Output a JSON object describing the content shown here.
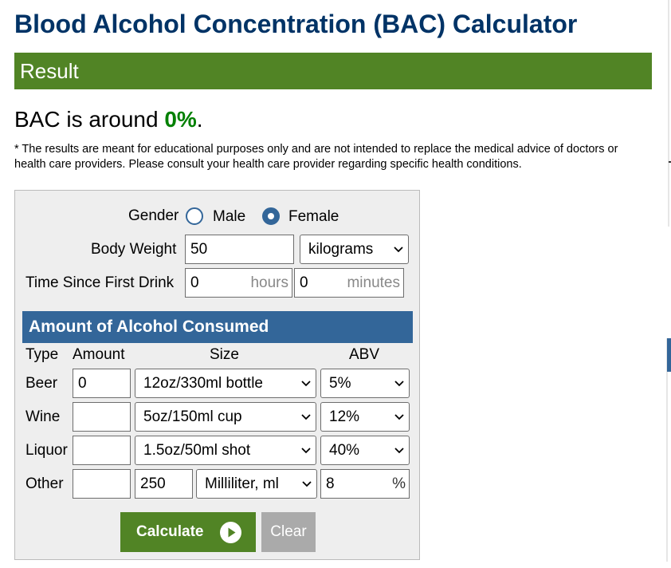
{
  "page": {
    "title": "Blood Alcohol Concentration (BAC) Calculator"
  },
  "result": {
    "header": "Result",
    "prefix": "BAC is around ",
    "value": "0%",
    "suffix": ".",
    "disclaimer": "* The results are meant for educational purposes only and are not intended to replace the medical advice of doctors or health care providers. Please consult your health care provider regarding specific health conditions."
  },
  "form": {
    "gender": {
      "label": "Gender",
      "options": [
        "Male",
        "Female"
      ],
      "selected": "Female"
    },
    "body_weight": {
      "label": "Body Weight",
      "value": "50",
      "unit": "kilograms"
    },
    "time_since": {
      "label": "Time Since First Drink",
      "hours_value": "0",
      "hours_unit": "hours",
      "minutes_value": "0",
      "minutes_unit": "minutes"
    },
    "alcohol_section": {
      "title": "Amount of Alcohol Consumed",
      "columns": {
        "type": "Type",
        "amount": "Amount",
        "size": "Size",
        "abv": "ABV"
      },
      "rows": [
        {
          "type": "Beer",
          "amount": "0",
          "size": "12oz/330ml bottle",
          "abv": "5%"
        },
        {
          "type": "Wine",
          "amount": "",
          "size": "5oz/150ml cup",
          "abv": "12%"
        },
        {
          "type": "Liquor",
          "amount": "",
          "size": "1.5oz/50ml shot",
          "abv": "40%"
        },
        {
          "type": "Other",
          "amount": "",
          "size_value": "250",
          "size_unit": "Milliliter, ml",
          "abv_value": "8",
          "abv_unit": "%"
        }
      ]
    },
    "buttons": {
      "calculate": "Calculate",
      "clear": "Clear"
    }
  },
  "colors": {
    "title": "#003366",
    "result_bar": "#518425",
    "bac_value": "#008000",
    "section_header": "#336699",
    "calculate": "#518425",
    "clear": "#aaaaaa"
  },
  "icons": {
    "calculate": "play-circle-icon",
    "select": "chevron-down-icon"
  }
}
